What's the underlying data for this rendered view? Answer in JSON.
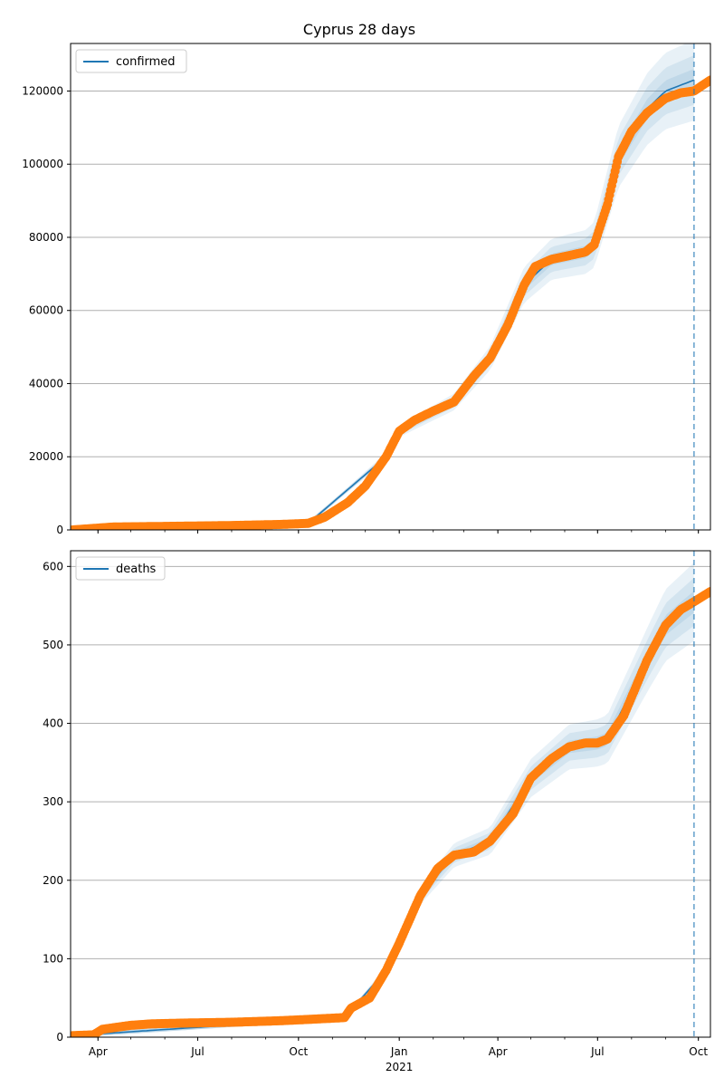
{
  "figure": {
    "title": "Cyprus 28 days"
  },
  "chart_data": [
    {
      "type": "line",
      "legend": "confirmed",
      "legend_position": "top-left",
      "grid": "y",
      "ylim": [
        0,
        133000
      ],
      "yticks": [
        0,
        20000,
        40000,
        60000,
        80000,
        100000,
        120000
      ],
      "xlim": [
        "2020-03-07",
        "2021-10-12"
      ],
      "xticks": [
        {
          "date": "2020-04-01",
          "label": "Apr"
        },
        {
          "date": "2020-07-01",
          "label": "Jul"
        },
        {
          "date": "2020-10-01",
          "label": "Oct"
        },
        {
          "date": "2021-01-01",
          "label": "Jan"
        },
        {
          "date": "2021-04-01",
          "label": "Apr"
        },
        {
          "date": "2021-07-01",
          "label": "Jul"
        },
        {
          "date": "2021-10-01",
          "label": "Oct"
        }
      ],
      "year_label": "2021",
      "forecast_date": "2021-09-27",
      "observed": {
        "x": [
          "2020-03-09",
          "2020-04-15",
          "2020-06-01",
          "2020-08-01",
          "2020-09-15",
          "2020-10-10",
          "2020-10-25",
          "2020-11-15",
          "2020-12-01",
          "2020-12-20",
          "2021-01-01",
          "2021-01-15",
          "2021-02-01",
          "2021-02-20",
          "2021-03-10",
          "2021-03-25",
          "2021-04-10",
          "2021-04-25",
          "2021-05-05",
          "2021-05-20",
          "2021-06-05",
          "2021-06-20",
          "2021-06-28",
          "2021-07-10",
          "2021-07-20",
          "2021-08-01",
          "2021-08-15",
          "2021-09-01",
          "2021-09-15",
          "2021-09-27",
          "2021-10-12"
        ],
        "y": [
          2,
          800,
          960,
          1200,
          1500,
          1800,
          3500,
          7500,
          12000,
          20000,
          27000,
          30000,
          32500,
          35000,
          42000,
          47000,
          56000,
          67000,
          72000,
          74000,
          75000,
          76000,
          78000,
          89000,
          102000,
          109000,
          114000,
          118000,
          119500,
          120000,
          123000
        ]
      },
      "model": {
        "x": [
          "2020-03-09",
          "2020-10-10",
          "2020-12-20",
          "2021-01-01",
          "2021-02-20",
          "2021-03-25",
          "2021-04-25",
          "2021-05-20",
          "2021-06-20",
          "2021-06-28",
          "2021-07-20",
          "2021-08-15",
          "2021-09-01",
          "2021-09-27"
        ],
        "y": [
          2,
          1800,
          20000,
          27000,
          35000,
          47000,
          67000,
          74000,
          76000,
          78000,
          102000,
          115000,
          120000,
          123000
        ]
      }
    },
    {
      "type": "line",
      "legend": "deaths",
      "legend_position": "top-left",
      "grid": "y",
      "ylim": [
        0,
        620
      ],
      "yticks": [
        0,
        100,
        200,
        300,
        400,
        500,
        600
      ],
      "xlim": [
        "2020-03-07",
        "2021-10-12"
      ],
      "xticks": [
        {
          "date": "2020-04-01",
          "label": "Apr"
        },
        {
          "date": "2020-07-01",
          "label": "Jul"
        },
        {
          "date": "2020-10-01",
          "label": "Oct"
        },
        {
          "date": "2021-01-01",
          "label": "Jan"
        },
        {
          "date": "2021-04-01",
          "label": "Apr"
        },
        {
          "date": "2021-07-01",
          "label": "Jul"
        },
        {
          "date": "2021-10-01",
          "label": "Oct"
        }
      ],
      "year_label": "2021",
      "forecast_date": "2021-09-27",
      "observed": {
        "x": [
          "2020-03-09",
          "2020-03-28",
          "2020-04-05",
          "2020-04-30",
          "2020-05-20",
          "2020-06-20",
          "2020-08-01",
          "2020-09-15",
          "2020-10-15",
          "2020-11-12",
          "2020-11-18",
          "2020-12-05",
          "2020-12-20",
          "2021-01-01",
          "2021-01-20",
          "2021-02-05",
          "2021-02-20",
          "2021-03-10",
          "2021-03-25",
          "2021-04-15",
          "2021-05-01",
          "2021-05-20",
          "2021-06-05",
          "2021-06-20",
          "2021-07-01",
          "2021-07-10",
          "2021-07-25",
          "2021-08-15",
          "2021-09-01",
          "2021-09-15",
          "2021-09-27",
          "2021-10-12"
        ],
        "y": [
          2,
          3,
          10,
          15,
          17,
          18,
          19,
          21,
          23,
          25,
          37,
          50,
          85,
          120,
          180,
          215,
          232,
          236,
          250,
          285,
          330,
          355,
          370,
          375,
          375,
          380,
          410,
          480,
          525,
          545,
          555,
          568
        ]
      },
      "model": {
        "x": [
          "2020-03-09",
          "2020-11-12",
          "2020-12-20",
          "2021-01-01",
          "2021-01-20",
          "2021-02-20",
          "2021-03-25",
          "2021-05-01",
          "2021-06-05",
          "2021-07-01",
          "2021-07-10",
          "2021-08-15",
          "2021-09-01",
          "2021-09-27"
        ],
        "y": [
          2,
          25,
          85,
          120,
          180,
          232,
          250,
          330,
          370,
          375,
          380,
          480,
          525,
          555
        ]
      }
    }
  ]
}
